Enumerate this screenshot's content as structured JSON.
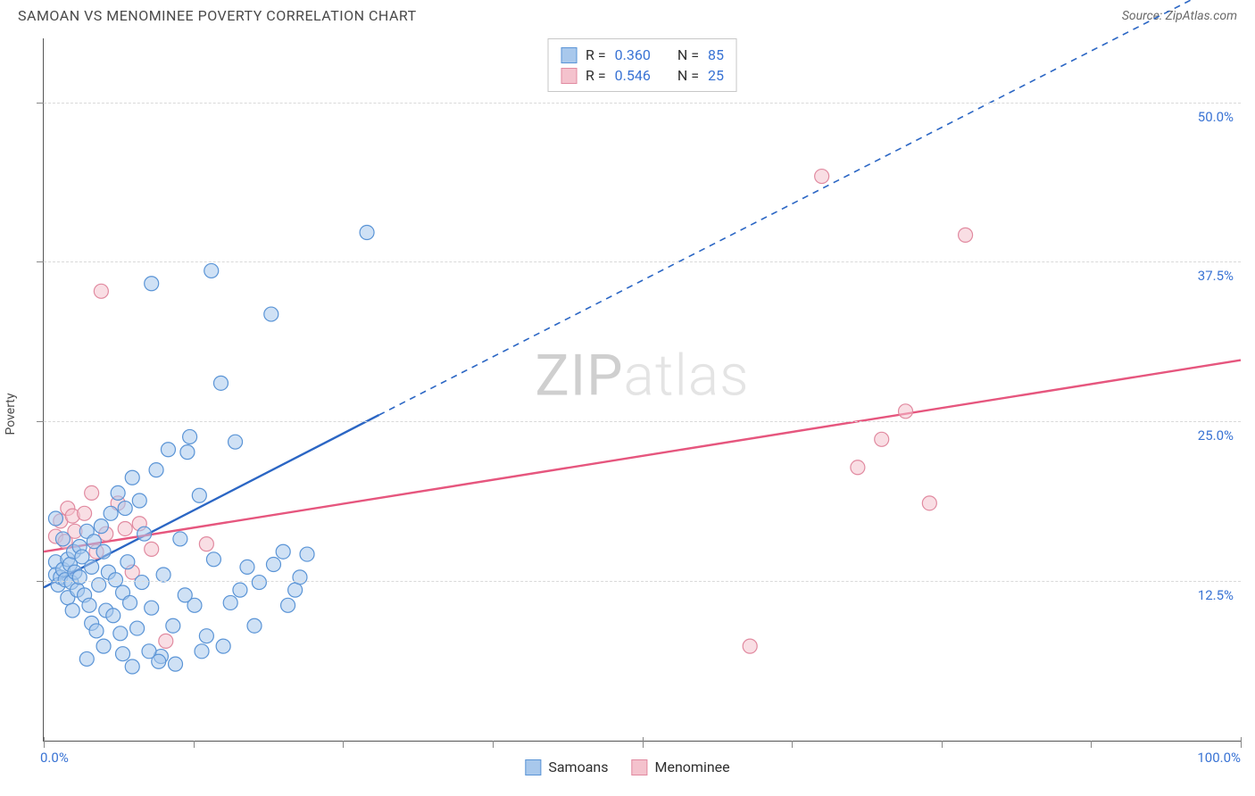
{
  "header": {
    "title": "SAMOAN VS MENOMINEE POVERTY CORRELATION CHART",
    "source": "Source: ZipAtlas.com"
  },
  "ylabel": "Poverty",
  "watermark": {
    "prefix": "ZIP",
    "suffix": "atlas"
  },
  "colors": {
    "blue_fill": "#a8c8ec",
    "blue_stroke": "#5a94d6",
    "pink_fill": "#f4c2cd",
    "pink_stroke": "#e18aa0",
    "blue_line": "#2b66c4",
    "pink_line": "#e6567e",
    "grid": "#d9d9d9",
    "axis_text": "#3973d4"
  },
  "chart": {
    "type": "scatter",
    "xlim": [
      0,
      100
    ],
    "ylim": [
      0,
      55
    ],
    "x_ticks_major": [
      0,
      50,
      100
    ],
    "x_ticks_minor": [
      12.5,
      25,
      37.5,
      62.5,
      75,
      87.5
    ],
    "y_gridlines": [
      12.5,
      25,
      37.5,
      50
    ],
    "y_tick_labels": [
      "12.5%",
      "25.0%",
      "37.5%",
      "50.0%"
    ],
    "x_tick_labels": {
      "left": "0.0%",
      "right": "100.0%"
    },
    "marker_radius": 8,
    "marker_opacity": 0.55,
    "line_width": 2.4,
    "background_color": "#ffffff"
  },
  "legend_stats": {
    "rows": [
      {
        "color": "blue",
        "R_label": "R =",
        "R": "0.360",
        "N_label": "N =",
        "N": "85"
      },
      {
        "color": "pink",
        "R_label": "R =",
        "R": "0.546",
        "N_label": "N =",
        "N": "25"
      }
    ]
  },
  "bottom_legend": {
    "items": [
      {
        "color": "blue",
        "label": "Samoans"
      },
      {
        "color": "pink",
        "label": "Menominee"
      }
    ]
  },
  "series": {
    "samoans": {
      "color": "blue",
      "trend": {
        "x1": 0,
        "y1": 12.0,
        "x2_solid": 28,
        "y2_solid": 25.5,
        "x2_dash": 100,
        "y2_dash": 60
      },
      "points": [
        [
          1,
          14
        ],
        [
          1,
          13
        ],
        [
          1.2,
          12.2
        ],
        [
          1.4,
          12.8
        ],
        [
          1.6,
          13.4
        ],
        [
          1.8,
          12.6
        ],
        [
          2,
          14.2
        ],
        [
          2,
          11.2
        ],
        [
          2.2,
          13.8
        ],
        [
          2.3,
          12.4
        ],
        [
          2.5,
          14.8
        ],
        [
          2.6,
          13.2
        ],
        [
          2.8,
          11.8
        ],
        [
          3,
          15.2
        ],
        [
          3,
          12.8
        ],
        [
          3.2,
          14.4
        ],
        [
          3.4,
          11.4
        ],
        [
          3.6,
          16.4
        ],
        [
          3.8,
          10.6
        ],
        [
          4,
          13.6
        ],
        [
          4,
          9.2
        ],
        [
          4.2,
          15.6
        ],
        [
          4.4,
          8.6
        ],
        [
          4.6,
          12.2
        ],
        [
          4.8,
          16.8
        ],
        [
          5,
          14.8
        ],
        [
          5.2,
          10.2
        ],
        [
          5.4,
          13.2
        ],
        [
          5.6,
          17.8
        ],
        [
          5.8,
          9.8
        ],
        [
          6,
          12.6
        ],
        [
          6.2,
          19.4
        ],
        [
          6.4,
          8.4
        ],
        [
          6.6,
          11.6
        ],
        [
          6.8,
          18.2
        ],
        [
          7,
          14.0
        ],
        [
          7.2,
          10.8
        ],
        [
          7.4,
          20.6
        ],
        [
          7.8,
          8.8
        ],
        [
          8,
          18.8
        ],
        [
          8.2,
          12.4
        ],
        [
          8.4,
          16.2
        ],
        [
          9,
          10.4
        ],
        [
          9,
          35.8
        ],
        [
          9.4,
          21.2
        ],
        [
          9.8,
          6.6
        ],
        [
          10,
          13.0
        ],
        [
          10.4,
          22.8
        ],
        [
          10.8,
          9.0
        ],
        [
          11,
          6.0
        ],
        [
          11.4,
          15.8
        ],
        [
          12,
          22.6
        ],
        [
          12.2,
          23.8
        ],
        [
          12.6,
          10.6
        ],
        [
          13,
          19.2
        ],
        [
          13.6,
          8.2
        ],
        [
          14,
          36.8
        ],
        [
          14.2,
          14.2
        ],
        [
          14.8,
          28.0
        ],
        [
          15,
          7.4
        ],
        [
          15.6,
          10.8
        ],
        [
          16,
          23.4
        ],
        [
          16.4,
          11.8
        ],
        [
          17,
          13.6
        ],
        [
          17.6,
          9.0
        ],
        [
          18,
          12.4
        ],
        [
          19,
          33.4
        ],
        [
          19.2,
          13.8
        ],
        [
          20,
          14.8
        ],
        [
          20.4,
          10.6
        ],
        [
          21,
          11.8
        ],
        [
          21.4,
          12.8
        ],
        [
          22,
          14.6
        ],
        [
          27,
          39.8
        ],
        [
          8.8,
          7.0
        ],
        [
          6.6,
          6.8
        ],
        [
          5.0,
          7.4
        ],
        [
          3.6,
          6.4
        ],
        [
          2.4,
          10.2
        ],
        [
          11.8,
          11.4
        ],
        [
          13.2,
          7.0
        ],
        [
          9.6,
          6.2
        ],
        [
          7.4,
          5.8
        ],
        [
          1.0,
          17.4
        ],
        [
          1.6,
          15.8
        ]
      ]
    },
    "menominee": {
      "color": "pink",
      "trend": {
        "x1": 0,
        "y1": 14.8,
        "x2_solid": 100,
        "y2_solid": 29.8
      },
      "points": [
        [
          1.0,
          16.0
        ],
        [
          1.4,
          17.2
        ],
        [
          1.8,
          15.6
        ],
        [
          2.0,
          18.2
        ],
        [
          2.4,
          17.6
        ],
        [
          2.6,
          16.4
        ],
        [
          3.4,
          17.8
        ],
        [
          4.0,
          19.4
        ],
        [
          4.4,
          14.8
        ],
        [
          4.8,
          35.2
        ],
        [
          5.2,
          16.2
        ],
        [
          6.2,
          18.6
        ],
        [
          6.8,
          16.6
        ],
        [
          7.4,
          13.2
        ],
        [
          8.0,
          17.0
        ],
        [
          9.0,
          15.0
        ],
        [
          10.2,
          7.8
        ],
        [
          13.6,
          15.4
        ],
        [
          59.0,
          7.4
        ],
        [
          65.0,
          44.2
        ],
        [
          68.0,
          21.4
        ],
        [
          70.0,
          23.6
        ],
        [
          72.0,
          25.8
        ],
        [
          77.0,
          39.6
        ],
        [
          74.0,
          18.6
        ]
      ]
    }
  }
}
